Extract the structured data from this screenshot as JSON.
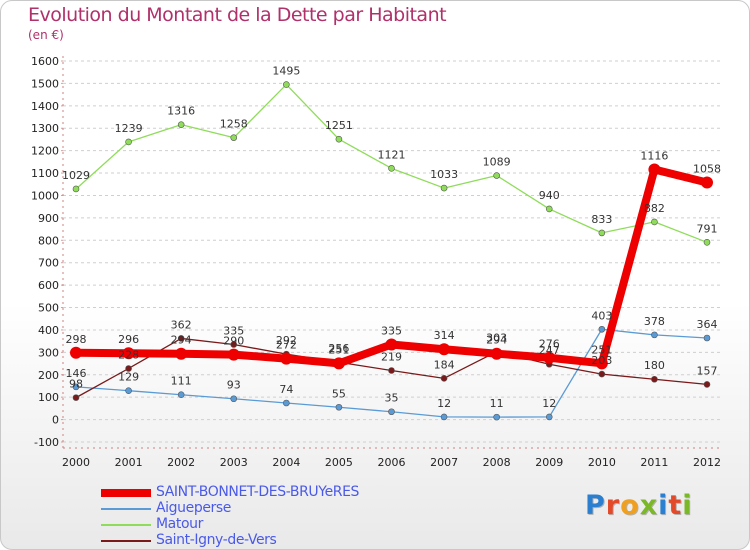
{
  "header": {
    "title": "Evolution du Montant de la Dette par Habitant",
    "subtitle": "(en €)"
  },
  "logo": {
    "text": "Proxiti"
  },
  "chart_data": {
    "type": "line",
    "title": "Evolution du Montant de la Dette par Habitant",
    "subtitle": "(en €)",
    "ylabel": "",
    "xlabel": "",
    "x": [
      "2000",
      "2001",
      "2002",
      "2003",
      "2004",
      "2005",
      "2006",
      "2007",
      "2008",
      "2009",
      "2010",
      "2011",
      "2012"
    ],
    "ylim": [
      -100,
      1600
    ],
    "yticks": [
      "-100",
      "0",
      "100",
      "200",
      "300",
      "400",
      "500",
      "600",
      "700",
      "800",
      "900",
      "1000",
      "1100",
      "1200",
      "1300",
      "1400",
      "1500",
      "1600"
    ],
    "grid": "horizontal dashed",
    "legend_position": "bottom-left",
    "series": [
      {
        "name": "SAINT-BONNET-DES-BRUYeRES",
        "color": "#ee0000",
        "values": [
          298,
          296,
          294,
          290,
          272,
          251,
          335,
          314,
          294,
          276,
          251,
          1116,
          1058
        ]
      },
      {
        "name": "Aigueperse",
        "color": "#5a9bd5",
        "values": [
          146,
          129,
          111,
          93,
          74,
          55,
          35,
          12,
          11,
          12,
          403,
          378,
          364
        ]
      },
      {
        "name": "Matour",
        "color": "#8fdc5a",
        "values": [
          1029,
          1239,
          1316,
          1258,
          1495,
          1251,
          1121,
          1033,
          1089,
          940,
          833,
          882,
          791
        ]
      },
      {
        "name": "Saint-Igny-de-Vers",
        "color": "#7a1a1a",
        "values": [
          98,
          228,
          362,
          335,
          292,
          256,
          219,
          184,
          303,
          247,
          203,
          180,
          157
        ]
      }
    ]
  }
}
